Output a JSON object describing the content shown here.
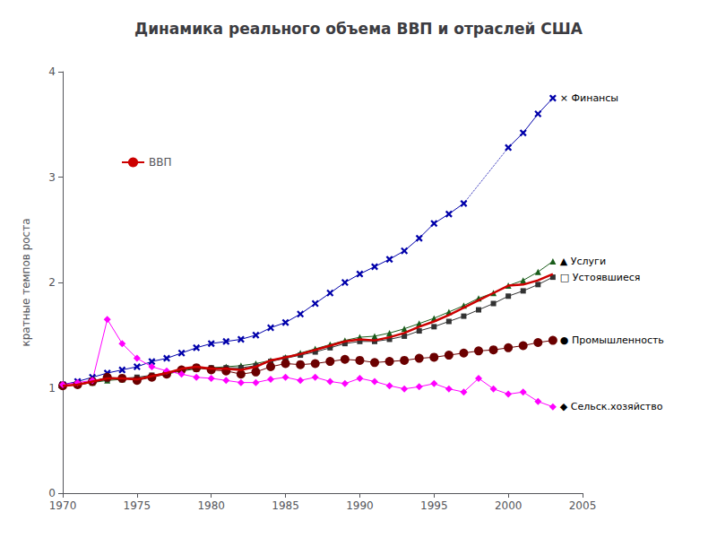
{
  "chart_data": {
    "type": "line",
    "title": "Динамика реального объема ВВП и отраслей США",
    "ylabel": "кратные темпов роста",
    "x": [
      1970,
      1971,
      1972,
      1973,
      1974,
      1975,
      1976,
      1977,
      1978,
      1979,
      1980,
      1981,
      1982,
      1983,
      1984,
      1985,
      1986,
      1987,
      1988,
      1989,
      1990,
      1991,
      1992,
      1993,
      1994,
      1995,
      1996,
      1997,
      1998,
      1999,
      2000,
      2001,
      2002,
      2003
    ],
    "xlim": [
      1970,
      2005
    ],
    "xticks": [
      1970,
      1975,
      1980,
      1985,
      1990,
      1995,
      2000,
      2005
    ],
    "ylim": [
      0,
      4
    ],
    "yticks": [
      0,
      1,
      2,
      3,
      4
    ],
    "grid": false,
    "legend": "upper left",
    "series": [
      {
        "name": "Финансы",
        "color": "#0000aa",
        "marker": "x",
        "line_style": "solid",
        "values": [
          1.03,
          1.06,
          1.1,
          1.14,
          1.17,
          1.2,
          1.25,
          1.28,
          1.33,
          1.38,
          1.42,
          1.44,
          1.46,
          1.5,
          1.57,
          1.62,
          1.7,
          1.8,
          1.9,
          2.0,
          2.08,
          2.15,
          2.22,
          2.3,
          2.42,
          2.56,
          2.65,
          2.75,
          null,
          null,
          3.28,
          3.42,
          3.6,
          3.75
        ]
      },
      {
        "name": "Услуги",
        "color": "#1a5c1a",
        "marker": "triangle",
        "line_style": "solid",
        "values": [
          1.02,
          1.03,
          1.05,
          1.07,
          1.08,
          1.09,
          1.11,
          1.13,
          1.16,
          1.18,
          1.19,
          1.2,
          1.21,
          1.23,
          1.26,
          1.29,
          1.33,
          1.37,
          1.41,
          1.45,
          1.48,
          1.49,
          1.52,
          1.56,
          1.61,
          1.66,
          1.72,
          1.78,
          1.85,
          1.9,
          1.97,
          2.02,
          2.1,
          2.2
        ]
      },
      {
        "name": "Устоявшиеся",
        "color": "#333333",
        "marker": "square",
        "line_style": "solid",
        "values": [
          1.02,
          1.03,
          1.05,
          1.08,
          1.09,
          1.1,
          1.12,
          1.14,
          1.17,
          1.19,
          1.19,
          1.19,
          1.19,
          1.21,
          1.25,
          1.28,
          1.31,
          1.34,
          1.38,
          1.42,
          1.44,
          1.44,
          1.46,
          1.49,
          1.54,
          1.58,
          1.63,
          1.68,
          1.74,
          1.8,
          1.87,
          1.92,
          1.98,
          2.05
        ]
      },
      {
        "name": "ВВП",
        "color": "#cc0000",
        "marker": "none",
        "line_style": "solid",
        "values": [
          1.02,
          1.03,
          1.06,
          1.09,
          1.09,
          1.08,
          1.11,
          1.14,
          1.18,
          1.2,
          1.18,
          1.18,
          1.17,
          1.2,
          1.26,
          1.29,
          1.32,
          1.36,
          1.4,
          1.44,
          1.46,
          1.45,
          1.48,
          1.52,
          1.58,
          1.63,
          1.69,
          1.76,
          1.83,
          1.9,
          1.97,
          1.98,
          2.02,
          2.08
        ]
      },
      {
        "name": "Промышленность",
        "color": "#6b0000",
        "marker": "circle",
        "line_style": "solid",
        "values": [
          1.02,
          1.03,
          1.06,
          1.1,
          1.09,
          1.07,
          1.1,
          1.13,
          1.17,
          1.19,
          1.17,
          1.16,
          1.13,
          1.15,
          1.2,
          1.23,
          1.22,
          1.23,
          1.25,
          1.27,
          1.26,
          1.24,
          1.25,
          1.26,
          1.28,
          1.29,
          1.31,
          1.33,
          1.35,
          1.36,
          1.38,
          1.4,
          1.43,
          1.45
        ]
      },
      {
        "name": "Сельск.хозяйство",
        "color": "#ff00ff",
        "marker": "diamond",
        "line_style": "solid",
        "values": [
          1.03,
          1.05,
          1.07,
          1.65,
          1.42,
          1.28,
          1.2,
          1.16,
          1.13,
          1.1,
          1.09,
          1.07,
          1.05,
          1.05,
          1.08,
          1.1,
          1.07,
          1.1,
          1.06,
          1.04,
          1.09,
          1.06,
          1.02,
          0.99,
          1.01,
          1.04,
          0.99,
          0.96,
          1.09,
          0.99,
          0.94,
          0.96,
          0.87,
          0.82
        ]
      }
    ],
    "annotations": [
      {
        "series": "Финансы",
        "text": "× Финансы"
      },
      {
        "series": "Услуги",
        "text": "▲ Услуги"
      },
      {
        "series": "Устоявшиеся",
        "text": "□ Устоявшиеся"
      },
      {
        "series": "Промышленность",
        "text": "● Промышленность"
      },
      {
        "series": "Сельск.хозяйство",
        "text": "◆ Сельск.хозяйство"
      }
    ]
  }
}
